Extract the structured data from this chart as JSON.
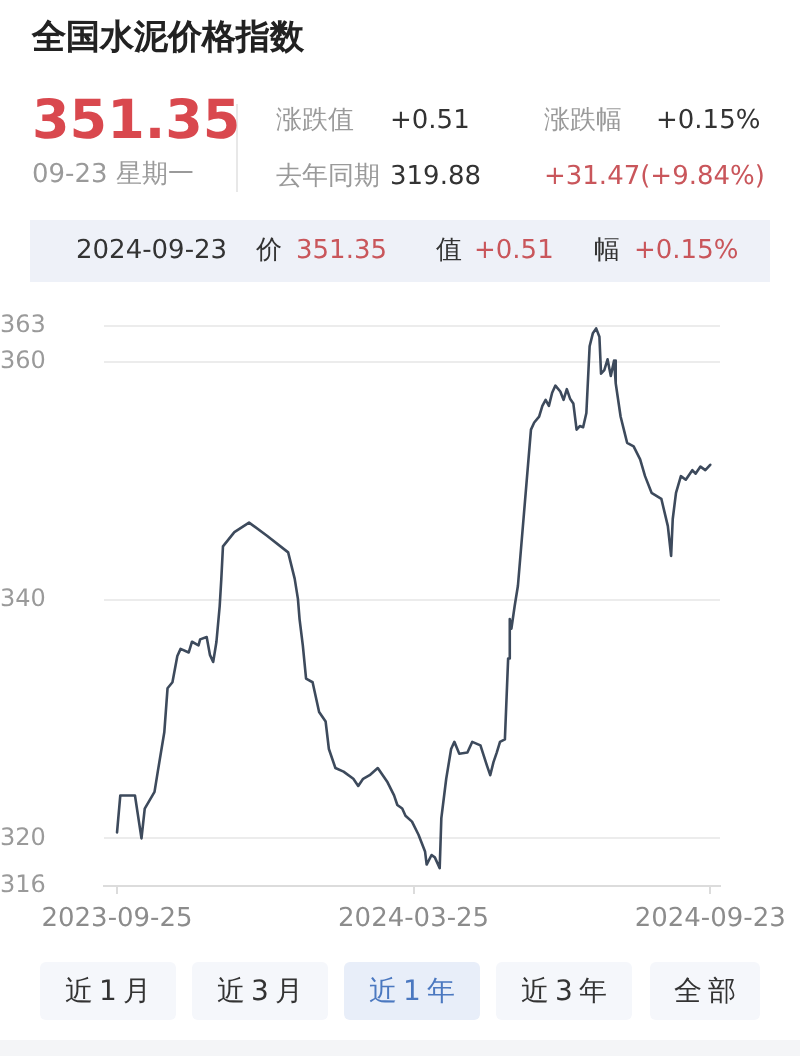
{
  "chart_data": {
    "type": "line",
    "title": "全国水泥价格指数",
    "annotations": [
      "351.35",
      "09-23 星期一",
      "涨跌值",
      "+0.51",
      "涨跌幅",
      "+0.15%",
      "去年同期",
      "319.88",
      "+31.47(+9.84%)",
      "2024-09-23",
      "价",
      "351.35",
      "值",
      "+0.51",
      "幅",
      "+0.15%",
      "近1月",
      "近3月",
      "近1年",
      "近3年",
      "全部"
    ],
    "x": [
      "2023-09-25",
      "2023-09-27",
      "2023-10-06",
      "2023-10-10",
      "2023-10-12",
      "2023-10-18",
      "2023-10-20",
      "2023-10-24",
      "2023-10-26",
      "2023-10-29",
      "2023-11-01",
      "2023-11-03",
      "2023-11-08",
      "2023-11-10",
      "2023-11-14",
      "2023-11-15",
      "2023-11-19",
      "2023-11-21",
      "2023-11-23",
      "2023-11-25",
      "2023-11-27",
      "2023-11-28",
      "2023-11-29",
      "2023-12-06",
      "2023-12-15",
      "2023-12-26",
      "2024-01-08",
      "2024-01-12",
      "2024-01-14",
      "2024-01-15",
      "2024-01-17",
      "2024-01-19",
      "2024-01-23",
      "2024-01-27",
      "2024-01-31",
      "2024-02-02",
      "2024-02-06",
      "2024-02-11",
      "2024-02-17",
      "2024-02-20",
      "2024-02-23",
      "2024-02-27",
      "2024-03-03",
      "2024-03-09",
      "2024-03-13",
      "2024-03-15",
      "2024-03-18",
      "2024-03-20",
      "2024-03-24",
      "2024-03-28",
      "2024-04-01",
      "2024-04-02",
      "2024-04-05",
      "2024-04-07",
      "2024-04-10",
      "2024-04-11",
      "2024-04-14",
      "2024-04-17",
      "2024-04-19",
      "2024-04-22",
      "2024-04-27",
      "2024-04-30",
      "2024-05-05",
      "2024-05-09",
      "2024-05-11",
      "2024-05-13",
      "2024-05-15",
      "2024-05-17",
      "2024-05-20",
      "2024-05-22",
      "2024-05-23",
      "2024-05-24",
      "2024-05-26",
      "2024-05-28",
      "2024-06-05",
      "2024-06-07",
      "2024-06-10",
      "2024-06-12",
      "2024-06-14",
      "2024-06-16",
      "2024-06-18",
      "2024-06-20",
      "2024-06-23",
      "2024-06-25",
      "2024-06-27",
      "2024-06-29",
      "2024-07-01",
      "2024-07-03",
      "2024-07-05",
      "2024-07-07",
      "2024-07-09",
      "2024-07-11",
      "2024-07-13",
      "2024-07-15",
      "2024-07-17",
      "2024-07-18",
      "2024-07-20",
      "2024-07-22",
      "2024-07-24",
      "2024-07-26",
      "2024-07-27",
      "2024-07-30",
      "2024-08-01",
      "2024-08-03",
      "2024-08-07",
      "2024-08-11",
      "2024-08-14",
      "2024-08-18",
      "2024-08-24",
      "2024-08-28",
      "2024-08-30",
      "2024-08-31",
      "2024-09-02",
      "2024-09-05",
      "2024-09-08",
      "2024-09-12",
      "2024-09-14",
      "2024-09-17",
      "2024-09-20",
      "2024-09-23"
    ],
    "values": [
      320.5,
      323.6,
      323.6,
      320.0,
      322.5,
      323.9,
      325.6,
      328.9,
      332.6,
      333.1,
      335.3,
      335.9,
      335.6,
      336.5,
      336.2,
      336.7,
      336.9,
      335.4,
      334.8,
      336.5,
      339.5,
      341.8,
      344.5,
      345.7,
      346.5,
      345.4,
      344.0,
      341.8,
      340.1,
      338.4,
      336.2,
      333.4,
      333.1,
      330.6,
      329.8,
      327.5,
      325.9,
      325.6,
      325.0,
      324.4,
      325.0,
      325.3,
      325.9,
      324.7,
      323.6,
      322.8,
      322.5,
      321.9,
      321.4,
      320.3,
      318.9,
      317.8,
      318.6,
      318.4,
      317.5,
      321.7,
      325.0,
      327.5,
      328.1,
      327.1,
      327.2,
      328.1,
      327.8,
      326.1,
      325.3,
      326.4,
      327.2,
      328.1,
      328.3,
      335.1,
      338.4,
      337.6,
      339.5,
      341.2,
      354.3,
      354.9,
      355.4,
      356.3,
      356.8,
      356.3,
      357.4,
      358.0,
      357.5,
      356.8,
      357.7,
      356.9,
      356.5,
      354.3,
      354.6,
      354.5,
      355.7,
      361.3,
      362.4,
      362.8,
      362.1,
      359.0,
      359.3,
      360.2,
      358.8,
      360.1,
      358.2,
      355.4,
      354.3,
      353.2,
      352.9,
      351.8,
      350.4,
      349.0,
      348.5,
      346.2,
      343.7,
      346.8,
      349.0,
      350.4,
      350.1,
      350.9,
      350.6,
      351.2,
      350.9,
      351.35
    ],
    "color": "#3d4a5c",
    "xlim": [
      "2023-09-17",
      "2024-09-29"
    ],
    "xticks": [
      "2023-09-25",
      "2024-03-25",
      "2024-09-23"
    ],
    "ylim": [
      316,
      363
    ],
    "yticks": [
      316,
      320,
      340,
      360,
      363
    ],
    "grid": "y"
  }
}
